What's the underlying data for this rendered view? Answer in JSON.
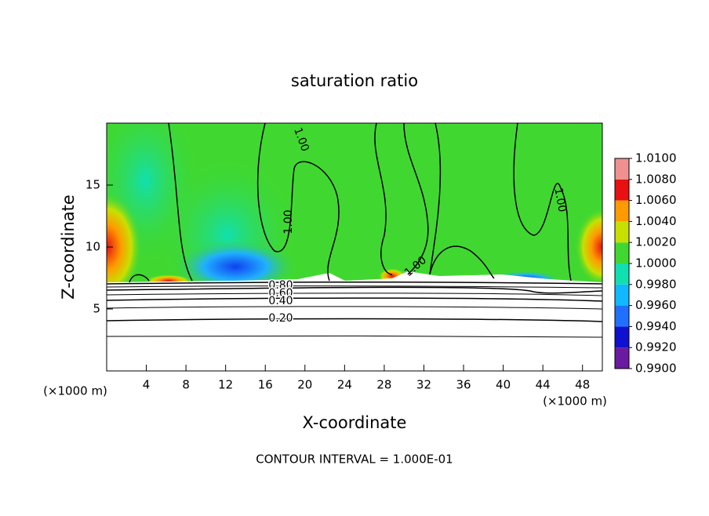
{
  "chart_data": {
    "type": "contour",
    "title": "saturation ratio",
    "x_label": "X-coordinate",
    "y_label": "Z-coordinate",
    "x_unit_left": "(×1000 m)",
    "x_unit_right": "(×1000 m)",
    "xlim": [
      0,
      50
    ],
    "xticks": [
      4,
      8,
      12,
      16,
      20,
      24,
      28,
      32,
      36,
      40,
      44,
      48
    ],
    "ylim": [
      0,
      20
    ],
    "yticks": [
      5,
      10,
      15
    ],
    "contour_labels": [
      "1.00",
      "1.00",
      "1.00",
      "1.00",
      "0.80",
      "0.60",
      "0.40",
      "0.20"
    ],
    "footer": "CONTOUR INTERVAL = 1.000E-01",
    "colorbar": {
      "ticks": [
        {
          "value": 0.99,
          "label": "0.9900"
        },
        {
          "value": 0.992,
          "label": "0.9920"
        },
        {
          "value": 0.994,
          "label": "0.9940"
        },
        {
          "value": 0.996,
          "label": "0.9960"
        },
        {
          "value": 0.998,
          "label": "0.9980"
        },
        {
          "value": 1.0,
          "label": "1.0000"
        },
        {
          "value": 1.002,
          "label": "1.0020"
        },
        {
          "value": 1.004,
          "label": "1.0040"
        },
        {
          "value": 1.006,
          "label": "1.0060"
        },
        {
          "value": 1.008,
          "label": "1.0080"
        },
        {
          "value": 1.01,
          "label": "1.0100"
        }
      ],
      "colors": [
        "#6a1aa0",
        "#1010d0",
        "#2070ff",
        "#10b8ff",
        "#10e0b0",
        "#40d830",
        "#c8e000",
        "#ff9a00",
        "#e81010",
        "#f09090"
      ]
    }
  }
}
